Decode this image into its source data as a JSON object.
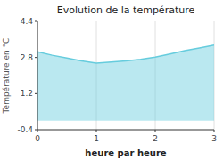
{
  "chart_data": {
    "type": "area",
    "title": "Evolution de la température",
    "x_label": "heure par heure",
    "y_label": "Température en °C",
    "x": [
      0,
      0.25,
      0.5,
      0.75,
      1.0,
      1.25,
      1.5,
      1.75,
      2.0,
      2.25,
      2.5,
      2.75,
      3.0
    ],
    "values": [
      3.05,
      2.9,
      2.78,
      2.65,
      2.55,
      2.6,
      2.65,
      2.72,
      2.82,
      2.95,
      3.1,
      3.22,
      3.35
    ],
    "color": "#66ccdd",
    "xlim": [
      0,
      3
    ],
    "ylim": [
      -0.4,
      4.4
    ],
    "xticks": [
      0,
      1,
      2,
      3
    ],
    "yticks": [
      -0.4,
      1.2,
      2.8,
      4.4
    ],
    "grid": "x"
  }
}
